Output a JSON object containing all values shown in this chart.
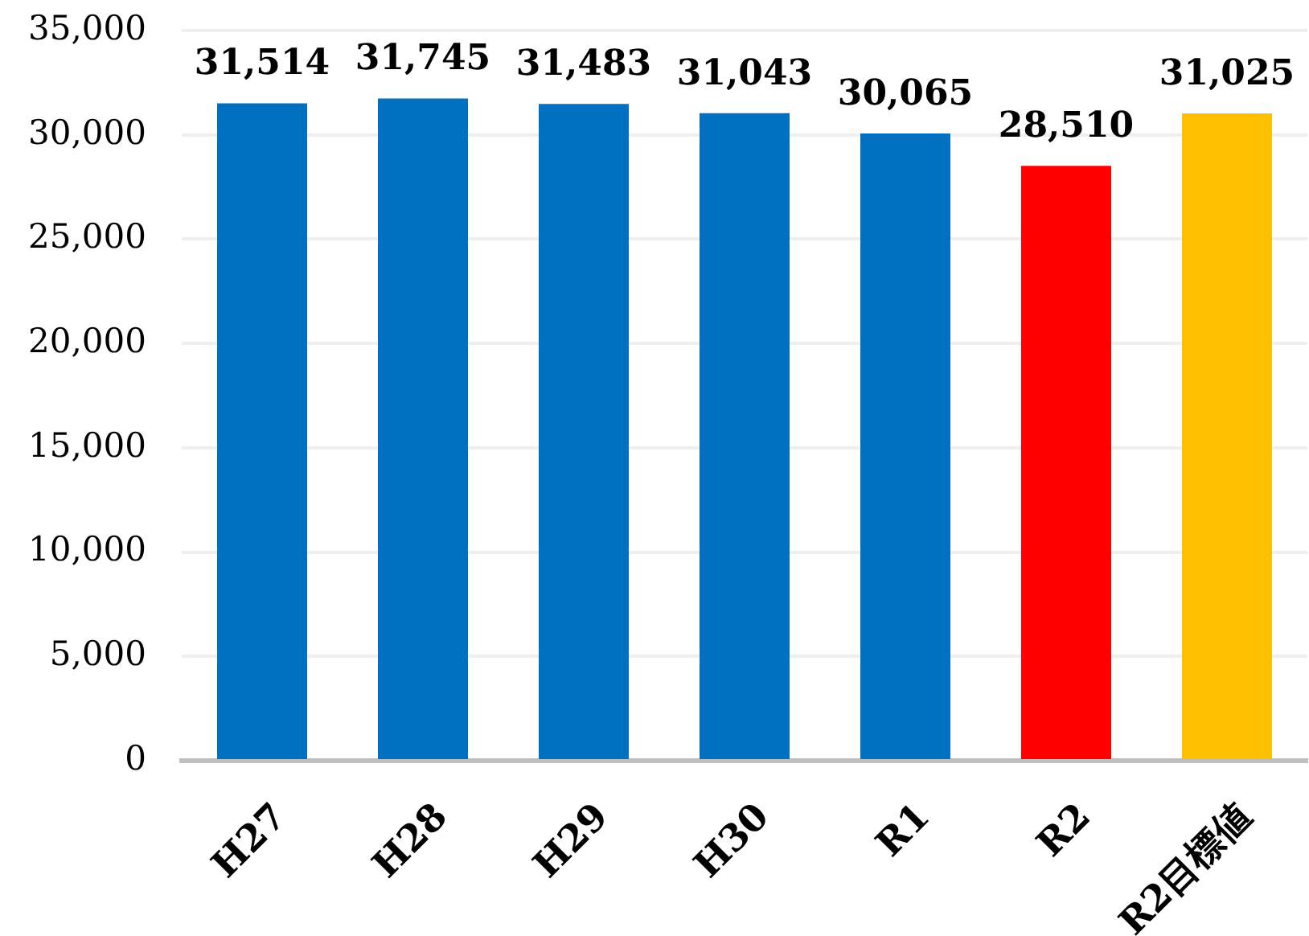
{
  "chart_data": {
    "type": "bar",
    "categories": [
      "H27",
      "H28",
      "H29",
      "H30",
      "R1",
      "R2",
      "R2目標値"
    ],
    "values": [
      31514,
      31745,
      31483,
      31043,
      30065,
      28510,
      31025
    ],
    "colors": [
      "#0070c0",
      "#0070c0",
      "#0070c0",
      "#0070c0",
      "#0070c0",
      "#ff0000",
      "#ffc000"
    ],
    "value_labels": [
      "31,514",
      "31,745",
      "31,483",
      "31,043",
      "30,065",
      "28,510",
      "31,025"
    ],
    "ylim": [
      0,
      35000
    ],
    "yticks": [
      0,
      {
        "value": 5000,
        "label": "5,000"
      },
      {
        "value": 10000,
        "label": "10,000"
      },
      {
        "value": 15000,
        "label": "15,000"
      },
      {
        "value": 20000,
        "label": "20,000"
      },
      {
        "value": 25000,
        "label": "25,000"
      },
      {
        "value": 30000,
        "label": "30,000"
      },
      {
        "value": 35000,
        "label": "35,000"
      }
    ],
    "grid": "y"
  }
}
